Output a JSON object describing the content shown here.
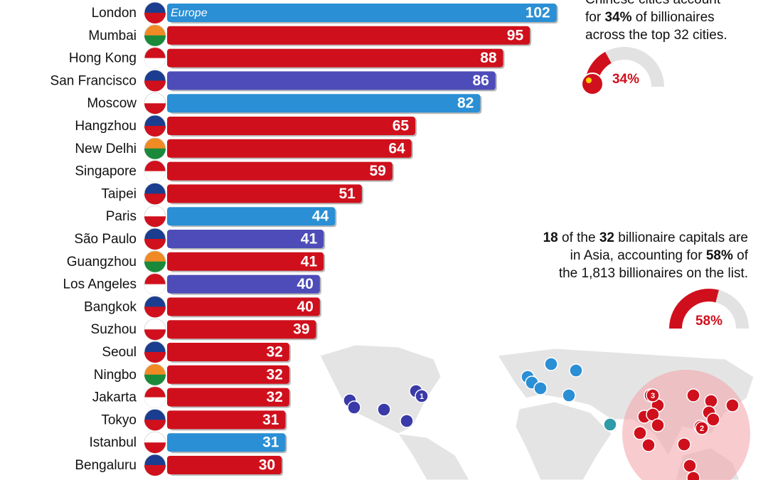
{
  "chart_data": {
    "type": "bar",
    "categories": [
      "London",
      "Mumbai",
      "Hong Kong",
      "San Francisco",
      "Moscow",
      "Hangzhou",
      "New Delhi",
      "Singapore",
      "Taipei",
      "Paris",
      "São Paulo",
      "Guangzhou",
      "Los Angeles",
      "Bangkok",
      "Suzhou",
      "Seoul",
      "Ningbo",
      "Jakarta",
      "Tokyo",
      "Istanbul",
      "Bengaluru"
    ],
    "values": [
      102,
      95,
      88,
      86,
      82,
      65,
      64,
      59,
      51,
      44,
      41,
      41,
      40,
      40,
      39,
      32,
      32,
      32,
      31,
      31,
      30
    ],
    "colors": [
      "#2a8fd4",
      "#cf101c",
      "#cf101c",
      "#4d4cb8",
      "#2a8fd4",
      "#cf101c",
      "#cf101c",
      "#cf101c",
      "#cf101c",
      "#2a8fd4",
      "#4d4cb8",
      "#cf101c",
      "#4d4cb8",
      "#cf101c",
      "#cf101c",
      "#cf101c",
      "#cf101c",
      "#cf101c",
      "#cf101c",
      "#2a8fd4",
      "#cf101c"
    ],
    "bar_annotation": "Europe",
    "notes": [
      {
        "lines": [
          [
            "Chinese cities account"
          ],
          [
            "for ",
            "34%",
            " of billionaires"
          ],
          [
            "across the top 32 cities."
          ]
        ],
        "gauge": {
          "value": 34,
          "label": "34%"
        }
      },
      {
        "lines": [
          [
            "18",
            " of the ",
            "32",
            " billionaire capitals are"
          ],
          [
            "in Asia, accounting for ",
            "58%",
            " of"
          ],
          [
            "the 1,813 billionaires on the list."
          ]
        ],
        "gauge": {
          "value": 58,
          "label": "58%"
        }
      }
    ],
    "map_markers": [
      "1",
      "2",
      "3"
    ]
  }
}
